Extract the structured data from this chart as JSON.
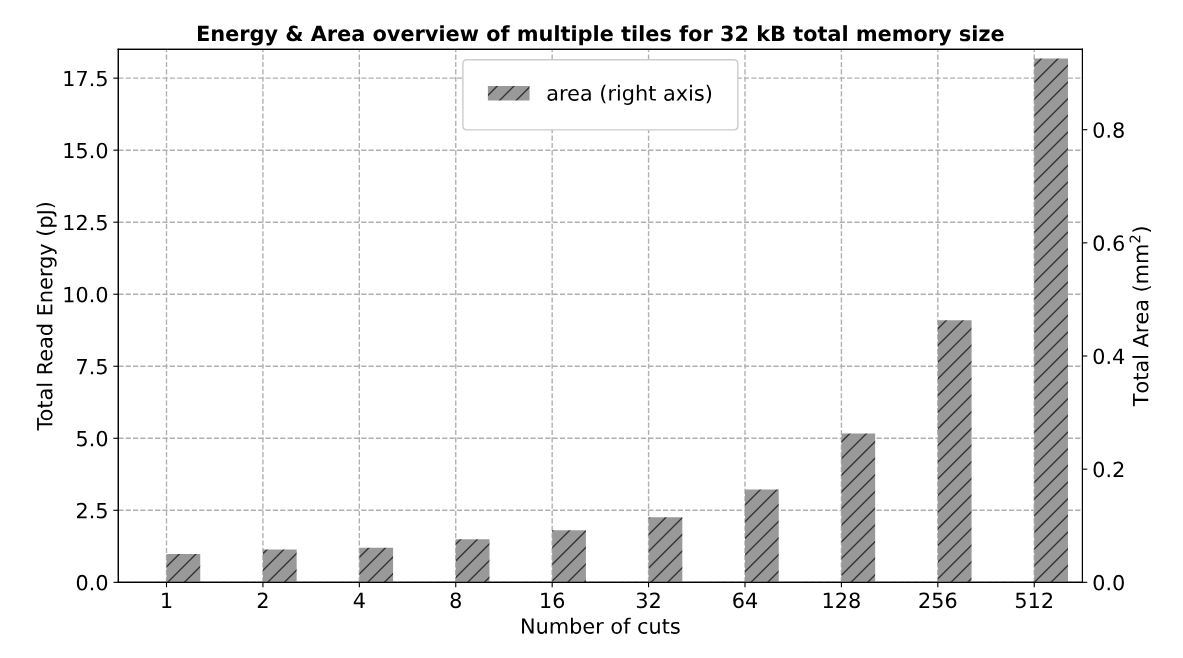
{
  "chart_data": {
    "type": "bar",
    "title": "Energy & Area overview of multiple tiles for 32 kB total memory size",
    "xlabel": "Number of cuts",
    "ylabel": "Total Read Energy (pJ)",
    "y2label": "Total Area (mm$^{2}$)",
    "categories": [
      "1",
      "2",
      "4",
      "8",
      "16",
      "32",
      "64",
      "128",
      "256",
      "512"
    ],
    "series": [
      {
        "name": "area (right axis)",
        "color": "#999999",
        "axis": "y2",
        "values": [
          0.05,
          0.058,
          0.061,
          0.076,
          0.092,
          0.115,
          0.164,
          0.263,
          0.463,
          0.926
        ]
      }
    ],
    "ylim": [
      0,
      18.5
    ],
    "yticks": [
      {
        "value": 0,
        "label": "0.0"
      },
      {
        "value": 2.5,
        "label": "2.5"
      },
      {
        "value": 5,
        "label": "5.0"
      },
      {
        "value": 7.5,
        "label": "7.5"
      },
      {
        "value": 10,
        "label": "10.0"
      },
      {
        "value": 12.5,
        "label": "12.5"
      },
      {
        "value": 15,
        "label": "15.0"
      },
      {
        "value": 17.5,
        "label": "17.5"
      }
    ],
    "y2lim": [
      0,
      0.942
    ],
    "y2ticks": [
      {
        "value": 0,
        "label": "0.0"
      },
      {
        "value": 0.2,
        "label": "0.2"
      },
      {
        "value": 0.4,
        "label": "0.4"
      },
      {
        "value": 0.6,
        "label": "0.6"
      },
      {
        "value": 0.8,
        "label": "0.8"
      }
    ],
    "grid": true,
    "legend": "top"
  }
}
